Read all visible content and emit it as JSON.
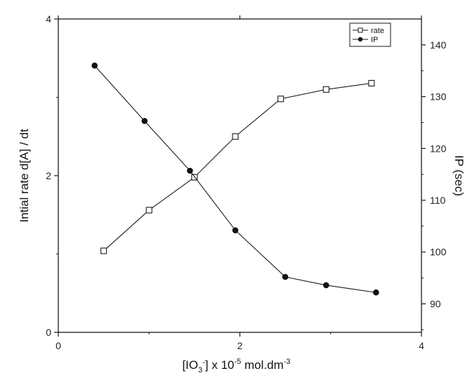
{
  "chart_data": {
    "type": "line",
    "x": [
      0.45,
      1.0,
      1.47,
      1.95,
      2.45,
      2.95,
      3.45
    ],
    "xlabel": {
      "main": "[IO",
      "sub": "3",
      "sup": "-",
      "rest": "] x 10",
      "exp": "-5",
      "unit": " mol.dm",
      "unit_exp": "-3"
    },
    "xlim": [
      0,
      4
    ],
    "xticks": [
      0,
      2,
      4
    ],
    "ylabel_left": "Intial rate d[A] / dt",
    "ylim_left": [
      0,
      4
    ],
    "yticks_left": [
      0,
      2,
      4
    ],
    "ylabel_right": "IP (sec)",
    "ylim_right": [
      84.5,
      145
    ],
    "yticks_right": [
      90,
      100,
      110,
      120,
      130,
      140
    ],
    "grid": false,
    "legend": "top-right",
    "series": [
      {
        "name": "rate",
        "axis": "left",
        "marker": "open-square",
        "x": [
          0.5,
          1.0,
          1.5,
          1.95,
          2.45,
          2.95,
          3.45
        ],
        "values": [
          1.04,
          1.56,
          1.98,
          2.5,
          2.98,
          3.1,
          3.18
        ]
      },
      {
        "name": "IP",
        "axis": "right",
        "marker": "filled-circle",
        "x": [
          0.4,
          0.95,
          1.45,
          1.95,
          2.5,
          2.95,
          3.5
        ],
        "values": [
          136,
          125.3,
          115.7,
          104.2,
          95.2,
          93.6,
          92.2
        ]
      }
    ]
  }
}
